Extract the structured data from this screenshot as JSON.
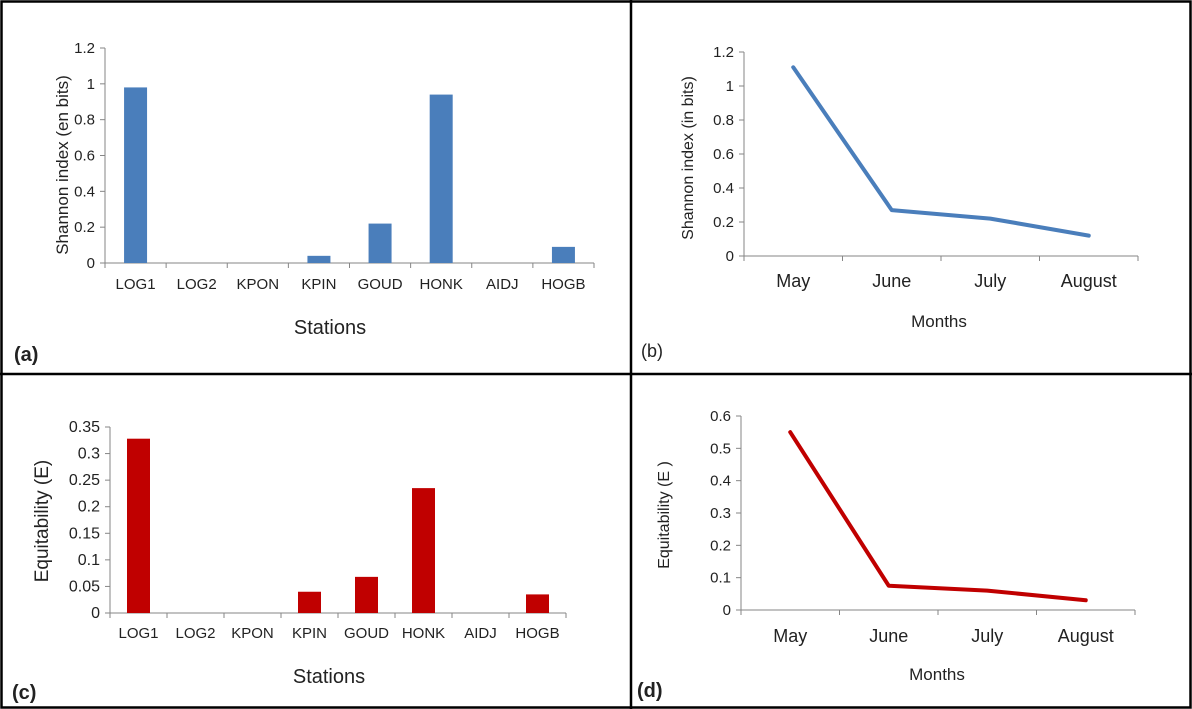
{
  "colors": {
    "blue": "#4a7ebb",
    "red": "#c00000",
    "axis": "#868686",
    "border": "#000000"
  },
  "chart_data": [
    {
      "type": "bar",
      "panel_label": "(a)",
      "categories": [
        "LOG1",
        "LOG2",
        "KPON",
        "KPIN",
        "GOUD",
        "HONK",
        "AIDJ",
        "HOGB"
      ],
      "values": [
        0.98,
        0,
        0,
        0.04,
        0.22,
        0.94,
        0,
        0.09
      ],
      "yticks": [
        "0",
        "0.2",
        "0.4",
        "0.6",
        "0.8",
        "1",
        "1.2"
      ],
      "ylim": [
        0,
        1.2
      ],
      "xlabel": "Stations",
      "ylabel": "Shannon index (en bits)",
      "color": "#4a7ebb",
      "grid": false,
      "legend": "none"
    },
    {
      "type": "line",
      "panel_label": "(b)",
      "categories": [
        "May",
        "June",
        "July",
        "August"
      ],
      "values": [
        1.11,
        0.27,
        0.22,
        0.12
      ],
      "yticks": [
        "0",
        "0.2",
        "0.4",
        "0.6",
        "0.8",
        "1",
        "1.2"
      ],
      "ylim": [
        0,
        1.2
      ],
      "xlabel": "Months",
      "ylabel": "Shannon index (in bits)",
      "color": "#4a7ebb",
      "grid": false,
      "legend": "none"
    },
    {
      "type": "bar",
      "panel_label": "(c)",
      "categories": [
        "LOG1",
        "LOG2",
        "KPON",
        "KPIN",
        "GOUD",
        "HONK",
        "AIDJ",
        "HOGB"
      ],
      "values": [
        0.328,
        0,
        0,
        0.04,
        0.068,
        0.235,
        0,
        0.035
      ],
      "yticks": [
        "0",
        "0.05",
        "0.1",
        "0.15",
        "0.2",
        "0.25",
        "0.3",
        "0.35"
      ],
      "ylim": [
        0,
        0.35
      ],
      "xlabel": "Stations",
      "ylabel": "Equitability (E)",
      "color": "#c00000",
      "grid": false,
      "legend": "none"
    },
    {
      "type": "line",
      "panel_label": "(d)",
      "categories": [
        "May",
        "June",
        "July",
        "August"
      ],
      "values": [
        0.55,
        0.075,
        0.06,
        0.03
      ],
      "yticks": [
        "0",
        "0.1",
        "0.2",
        "0.3",
        "0.4",
        "0.5",
        "0.6"
      ],
      "ylim": [
        0,
        0.6
      ],
      "xlabel": "Months",
      "ylabel": "Equitability (E )",
      "color": "#c00000",
      "grid": false,
      "legend": "none"
    }
  ]
}
